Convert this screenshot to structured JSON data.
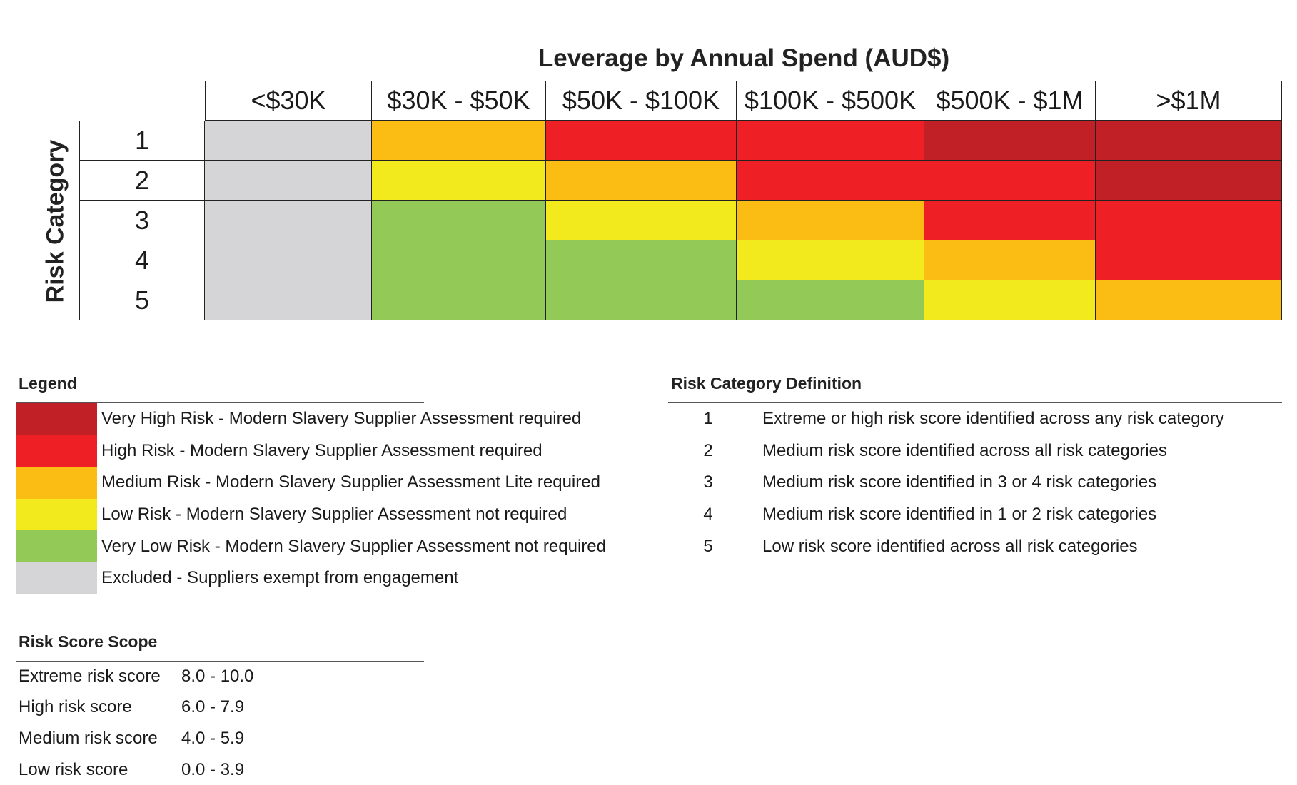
{
  "matrix": {
    "title": "Leverage by Annual Spend (AUD$)",
    "y_axis_title": "Risk Category",
    "columns": [
      "<$30K",
      "$30K - $50K",
      "$50K - $100K",
      "$100K - $500K",
      "$500K - $1M",
      ">$1M"
    ],
    "rows": [
      {
        "label": "1",
        "levels": [
          "excluded",
          "medium",
          "high",
          "high",
          "very_high",
          "very_high"
        ]
      },
      {
        "label": "2",
        "levels": [
          "excluded",
          "low",
          "medium",
          "high",
          "high",
          "very_high"
        ]
      },
      {
        "label": "3",
        "levels": [
          "excluded",
          "very_low",
          "low",
          "medium",
          "high",
          "high"
        ]
      },
      {
        "label": "4",
        "levels": [
          "excluded",
          "very_low",
          "very_low",
          "low",
          "medium",
          "high"
        ]
      },
      {
        "label": "5",
        "levels": [
          "excluded",
          "very_low",
          "very_low",
          "very_low",
          "low",
          "medium"
        ]
      }
    ]
  },
  "colors": {
    "very_high": "#c02026",
    "high": "#ee2025",
    "medium": "#fbbd14",
    "low": "#f2ea1c",
    "very_low": "#92c957",
    "excluded": "#d5d5d7"
  },
  "legend": {
    "title": "Legend",
    "items": [
      {
        "level": "very_high",
        "text": "Very High Risk - Modern Slavery Supplier Assessment required"
      },
      {
        "level": "high",
        "text": "High Risk - Modern Slavery Supplier Assessment required"
      },
      {
        "level": "medium",
        "text": "Medium Risk - Modern Slavery Supplier Assessment Lite required"
      },
      {
        "level": "low",
        "text": "Low Risk - Modern Slavery Supplier Assessment not required"
      },
      {
        "level": "very_low",
        "text": "Very Low Risk - Modern Slavery Supplier Assessment not required"
      },
      {
        "level": "excluded",
        "text": "Excluded - Suppliers exempt from engagement"
      }
    ]
  },
  "definitions": {
    "title": "Risk Category Definition",
    "items": [
      {
        "num": "1",
        "text": "Extreme or high risk score identified across any risk category"
      },
      {
        "num": "2",
        "text": "Medium risk score identified across all risk categories"
      },
      {
        "num": "3",
        "text": "Medium risk score identified in 3 or 4 risk categories"
      },
      {
        "num": "4",
        "text": "Medium risk score identified in 1 or 2 risk categories"
      },
      {
        "num": "5",
        "text": "Low risk score identified across all risk categories"
      }
    ]
  },
  "scope": {
    "title": "Risk Score Scope",
    "items": [
      {
        "label": "Extreme risk score",
        "range": "8.0 - 10.0"
      },
      {
        "label": "High risk score",
        "range": "6.0 - 7.9"
      },
      {
        "label": "Medium risk score",
        "range": "4.0 - 5.9"
      },
      {
        "label": "Low risk score",
        "range": "0.0 - 3.9"
      }
    ]
  }
}
